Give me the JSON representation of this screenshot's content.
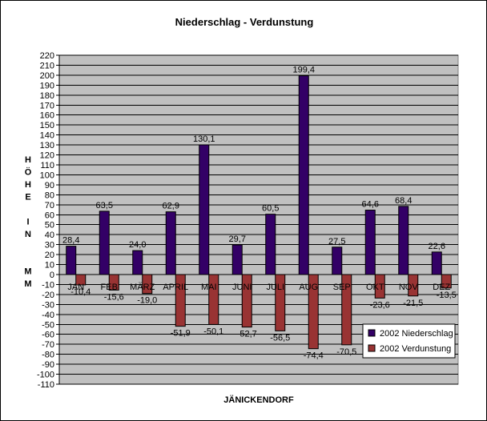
{
  "chart_data": {
    "type": "bar",
    "title": "Niederschlag  -  Verdunstung",
    "xlabel": "JÄNICKENDORF",
    "ylabel": [
      "H",
      "Ö",
      "H",
      "E",
      "",
      "I",
      "N",
      "",
      "",
      "M",
      "M"
    ],
    "categories": [
      "JAN",
      "FEB",
      "MÄRZ",
      "APRIL",
      "MAI",
      "JUNI",
      "JULI",
      "AUG",
      "SEP",
      "OKT",
      "NOV",
      "DEZ"
    ],
    "series": [
      {
        "name": "2002 Niederschlag",
        "color": "#330066",
        "values": [
          28.4,
          63.5,
          24.0,
          62.9,
          130.1,
          29.7,
          60.5,
          199.4,
          27.5,
          64.6,
          68.4,
          22.6
        ],
        "labels": [
          "28,4",
          "63,5",
          "24,0",
          "62,9",
          "130,1",
          "29,7",
          "60,5",
          "199,4",
          "27,5",
          "64,6",
          "68,4",
          "22,6"
        ]
      },
      {
        "name": "2002 Verdunstung",
        "color": "#993333",
        "values": [
          -10.4,
          -15.6,
          -19.0,
          -51.9,
          -50.1,
          -52.7,
          -56.5,
          -74.4,
          -70.5,
          -23.6,
          -21.5,
          -13.5
        ],
        "labels": [
          "-10,4",
          "-15,6",
          "-19,0",
          "-51,9",
          "-50,1",
          "-52,7",
          "-56,5",
          "-74,4",
          "-70,5",
          "-23,6",
          "-21,5",
          "-13,5"
        ]
      }
    ],
    "ylim": [
      -110,
      220
    ],
    "ytick_step": 10,
    "grid": true,
    "plot_background": "#c0c0c0",
    "legend_position": "bottom-right"
  }
}
